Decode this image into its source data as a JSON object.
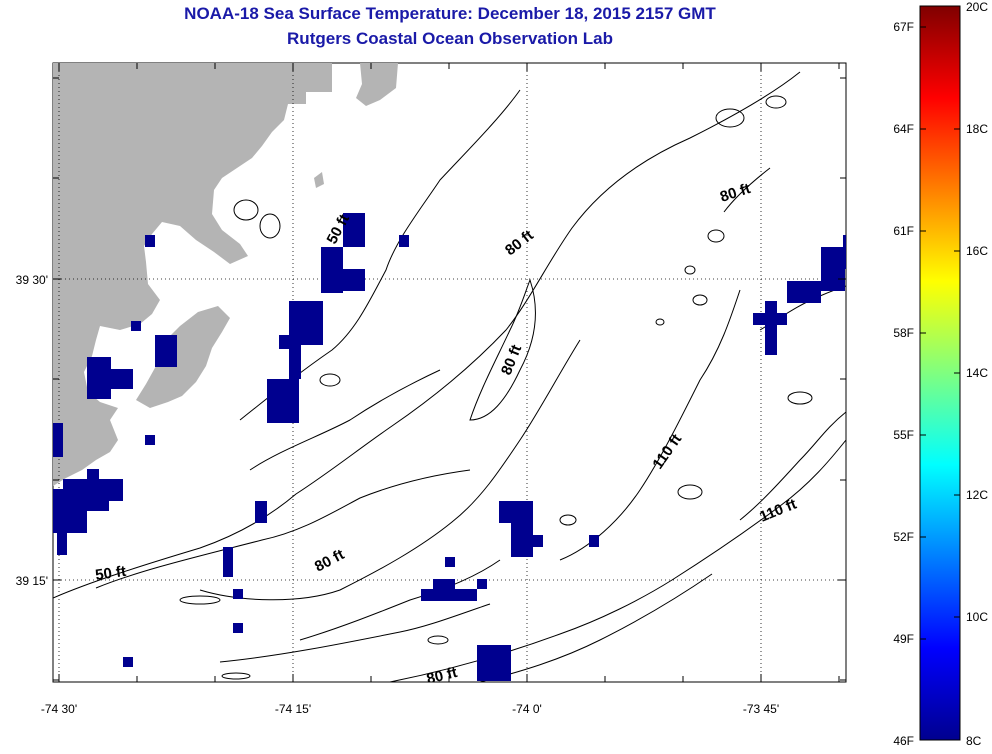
{
  "title": "NOAA-18 Sea Surface Temperature:  December 18, 2015 2157 GMT",
  "subtitle": "Rutgers Coastal Ocean Observation Lab",
  "map": {
    "lon_labels": [
      "-74 30'",
      "-74 15'",
      "-74 0'",
      "-73 45'"
    ],
    "lat_labels": [
      "39 30'",
      "39 15'"
    ],
    "contour_labels": [
      "50 ft",
      "50 ft",
      "80 ft",
      "80 ft",
      "80 ft",
      "80 ft",
      "80 ft",
      "110 ft",
      "110 ft"
    ],
    "land_color": "#b4b4b4",
    "sst_pixel_color": "#00008f"
  },
  "colorbar": {
    "fahrenheit_labels": [
      "67F",
      "64F",
      "61F",
      "58F",
      "55F",
      "52F",
      "49F",
      "46F"
    ],
    "celsius_labels": [
      "20C",
      "18C",
      "16C",
      "14C",
      "12C",
      "10C",
      "8C"
    ],
    "colormap": "jet"
  }
}
